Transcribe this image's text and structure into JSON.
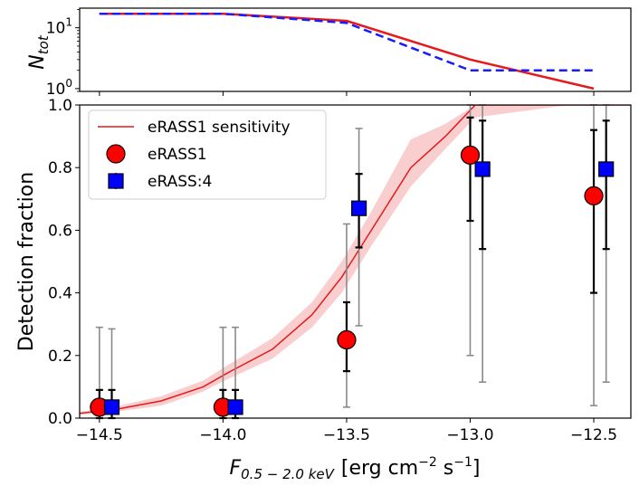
{
  "chart_data": [
    {
      "id": "top",
      "type": "line",
      "ylabel_main": "N",
      "ylabel_sub": "tot",
      "yscale": "log",
      "ylim": [
        0.9,
        21
      ],
      "xlim": [
        -14.58,
        -12.35
      ],
      "yticks": [
        {
          "value": 1,
          "base": "10",
          "exp": "0"
        },
        {
          "value": 10,
          "base": "10",
          "exp": "1"
        }
      ],
      "series": [
        {
          "name": "eRASS1",
          "color": "#e41a1c",
          "style": "solid",
          "x": [
            -14.5,
            -14.0,
            -13.5,
            -13.0,
            -12.5
          ],
          "y": [
            17,
            17,
            13,
            3,
            1
          ]
        },
        {
          "name": "eRASS:4",
          "color": "#1a1aff",
          "style": "dashed",
          "x": [
            -14.5,
            -14.0,
            -13.5,
            -13.0,
            -12.5
          ],
          "y": [
            17,
            17,
            12,
            2,
            2
          ]
        }
      ]
    },
    {
      "id": "main",
      "type": "scatter",
      "xlabel_main": "F",
      "xlabel_sub": "0.5 − 2.0 keV",
      "xlabel_unit": "[erg cm",
      "xlabel_exp1": "−2",
      "xlabel_unit2": " s",
      "xlabel_exp2": "−1",
      "xlabel_close": "]",
      "ylabel": "Detection fraction",
      "xlim": [
        -14.58,
        -12.35
      ],
      "ylim": [
        0.0,
        1.0
      ],
      "xticks": [
        {
          "value": -14.5,
          "label": "−14.5"
        },
        {
          "value": -14.0,
          "label": "−14.0"
        },
        {
          "value": -13.5,
          "label": "−13.5"
        },
        {
          "value": -13.0,
          "label": "−13.0"
        },
        {
          "value": -12.5,
          "label": "−12.5"
        }
      ],
      "yticks": [
        {
          "value": 0.0,
          "label": "0.0"
        },
        {
          "value": 0.2,
          "label": "0.2"
        },
        {
          "value": 0.4,
          "label": "0.4"
        },
        {
          "value": 0.6,
          "label": "0.6"
        },
        {
          "value": 0.8,
          "label": "0.8"
        },
        {
          "value": 1.0,
          "label": "1.0"
        }
      ],
      "sensitivity": {
        "name": "eRASS1 sensitivity",
        "color": "#e41a1c",
        "band_color": "#f8c6c6",
        "x": [
          -14.58,
          -14.42,
          -14.25,
          -14.08,
          -13.98,
          -13.8,
          -13.64,
          -13.52,
          -13.4,
          -13.24,
          -13.1,
          -12.98,
          -12.6,
          -12.35
        ],
        "y": [
          0.015,
          0.03,
          0.055,
          0.1,
          0.145,
          0.22,
          0.33,
          0.45,
          0.6,
          0.8,
          0.9,
          1.0,
          1.0,
          1.0
        ],
        "lower": [
          0.01,
          0.022,
          0.04,
          0.085,
          0.125,
          0.19,
          0.29,
          0.4,
          0.55,
          0.74,
          0.86,
          0.96,
          1.0,
          1.0
        ],
        "upper": [
          0.02,
          0.04,
          0.07,
          0.12,
          0.17,
          0.255,
          0.37,
          0.5,
          0.66,
          0.89,
          0.94,
          1.0,
          1.0,
          1.0
        ]
      },
      "series": [
        {
          "name": "eRASS1",
          "marker": "circle",
          "color": "#ff0000",
          "x": [
            -14.5,
            -14.0,
            -13.5,
            -13.0,
            -12.5
          ],
          "y": [
            0.035,
            0.035,
            0.25,
            0.84,
            0.71
          ],
          "err_inner": [
            [
              0.0,
              0.09
            ],
            [
              0.0,
              0.09
            ],
            [
              0.15,
              0.37
            ],
            [
              0.63,
              0.96
            ],
            [
              0.4,
              0.92
            ]
          ],
          "err_outer": [
            [
              0.0,
              0.29
            ],
            [
              0.0,
              0.29
            ],
            [
              0.035,
              0.62
            ],
            [
              0.2,
              1.0
            ],
            [
              0.04,
              1.0
            ]
          ]
        },
        {
          "name": "eRASS:4",
          "marker": "square",
          "color": "#0000ff",
          "x": [
            -14.45,
            -13.95,
            -13.45,
            -12.95,
            -12.45
          ],
          "y": [
            0.035,
            0.035,
            0.67,
            0.795,
            0.795
          ],
          "err_inner": [
            [
              0.0,
              0.09
            ],
            [
              0.0,
              0.09
            ],
            [
              0.545,
              0.78
            ],
            [
              0.54,
              0.95
            ],
            [
              0.54,
              0.95
            ]
          ],
          "err_outer": [
            [
              0.0,
              0.285
            ],
            [
              0.0,
              0.29
            ],
            [
              0.295,
              0.925
            ],
            [
              0.115,
              1.0
            ],
            [
              0.115,
              1.0
            ]
          ]
        }
      ],
      "legend": {
        "position": "upper-left",
        "entries": [
          "eRASS1 sensitivity",
          "eRASS1",
          "eRASS:4"
        ]
      }
    }
  ]
}
